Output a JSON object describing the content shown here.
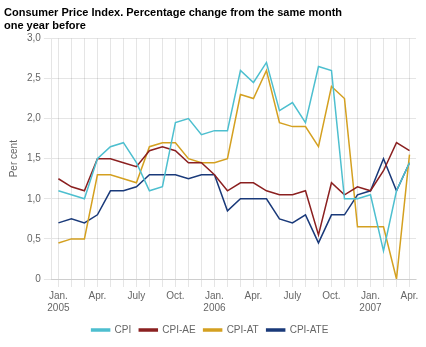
{
  "chart_data": {
    "type": "line",
    "title": [
      "Consumer Price Index. Percentage change from the same month",
      "one year before"
    ],
    "y_label": "Per cent",
    "categories": [
      "Jan.\n2005",
      null,
      null,
      "Apr.",
      null,
      null,
      "July",
      null,
      null,
      "Oct.",
      null,
      null,
      "Jan.\n2006",
      null,
      null,
      "Apr.",
      null,
      null,
      "July",
      null,
      null,
      "Oct.",
      null,
      null,
      "Jan.\n2007",
      null,
      null,
      "Apr."
    ],
    "series": [
      {
        "name": "CPI",
        "color": "#4dbfcf",
        "values": [
          1.1,
          1.05,
          1.0,
          1.5,
          1.65,
          1.7,
          1.45,
          1.1,
          1.15,
          1.95,
          2.0,
          1.8,
          1.85,
          1.85,
          2.6,
          2.45,
          2.7,
          2.1,
          2.2,
          1.95,
          2.65,
          2.6,
          1.0,
          1.0,
          1.05,
          0.35,
          1.1,
          1.45
        ]
      },
      {
        "name": "CPI-AE",
        "color": "#8b2020",
        "values": [
          1.25,
          1.15,
          1.1,
          1.5,
          1.5,
          1.45,
          1.4,
          1.6,
          1.65,
          1.6,
          1.45,
          1.45,
          1.3,
          1.1,
          1.2,
          1.2,
          1.1,
          1.05,
          1.05,
          1.1,
          0.55,
          1.2,
          1.05,
          1.15,
          1.1,
          1.35,
          1.7,
          1.6
        ]
      },
      {
        "name": "CPI-AT",
        "color": "#d4a020",
        "values": [
          0.45,
          0.5,
          0.5,
          1.3,
          1.3,
          1.25,
          1.2,
          1.65,
          1.7,
          1.7,
          1.5,
          1.45,
          1.45,
          1.5,
          2.3,
          2.25,
          2.6,
          1.95,
          1.9,
          1.9,
          1.65,
          2.4,
          2.25,
          0.65,
          0.65,
          0.65,
          0.0,
          1.55
        ]
      },
      {
        "name": "CPI-ATE",
        "color": "#1a3a7a",
        "values": [
          0.7,
          0.75,
          0.7,
          0.8,
          1.1,
          1.1,
          1.15,
          1.3,
          1.3,
          1.3,
          1.25,
          1.3,
          1.3,
          0.85,
          1.0,
          1.0,
          1.0,
          0.75,
          0.7,
          0.8,
          0.45,
          0.8,
          0.8,
          1.05,
          1.1,
          1.5,
          1.1,
          1.45
        ]
      }
    ],
    "ylim": [
      0,
      3.0
    ],
    "yticks": [
      0,
      {
        "value": 0.5,
        "label": "0,5"
      },
      {
        "value": 1.0,
        "label": "1,0"
      },
      {
        "value": 1.5,
        "label": "1,5"
      },
      {
        "value": 2.0,
        "label": "2,0"
      },
      {
        "value": 2.5,
        "label": "2,5"
      },
      {
        "value": 3.0,
        "label": "3,0"
      }
    ],
    "grid": true,
    "legend": "bottom"
  }
}
